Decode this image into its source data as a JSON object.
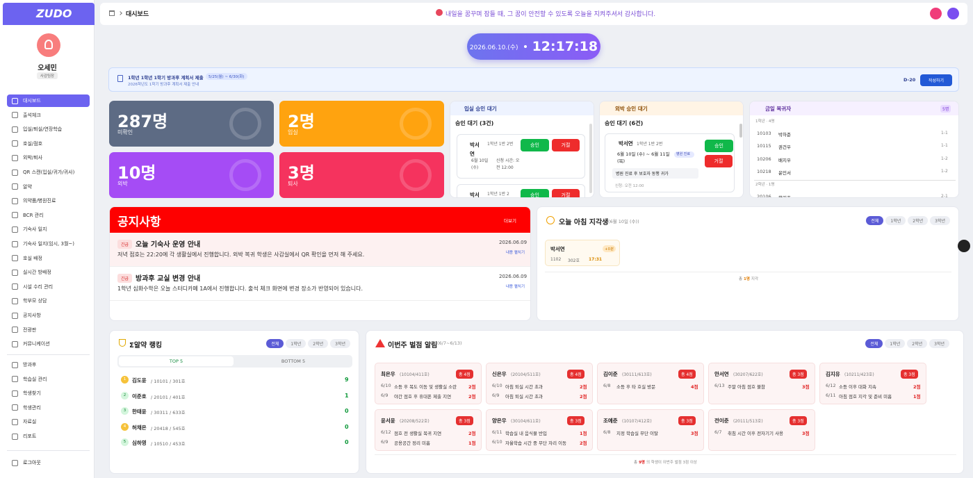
{
  "sidebar": {
    "logo": "ZUDO",
    "user": {
      "name": "오세민",
      "role": "사감팀장"
    },
    "menu": [
      "대시보드",
      "출석체크",
      "입실/퇴실/연장학습",
      "호실/점호",
      "외박/퇴사",
      "QR 스캔(입실/귀가/귀사)",
      "알약",
      "의약품/병원진료",
      "BCR 관리",
      "기숙사 일지",
      "기숙사 일지(임시, 3월~)",
      "호실 배정",
      "실시간 방배정",
      "시설 수리 관리",
      "학부모 상담",
      "공지사항",
      "전광판",
      "커뮤니케이션"
    ],
    "menu2": [
      "방과후",
      "학습실 관리",
      "학생찾기",
      "학생관리",
      "자료실",
      "리포트"
    ],
    "logout": "로그아웃"
  },
  "header": {
    "breadcrumb": "대시보드",
    "message": "내일을 꿈꾸며 잠들 때, 그 꿈이 안전할 수 있도록 오늘을 지켜주셔서 감사합니다."
  },
  "clock": {
    "date": "2026.06.10.(수)",
    "time": "12:17:18"
  },
  "banner": {
    "title": "1학년 1학년 1학기 방과후 계획서 제출",
    "period": "5/25(월) ~ 6/30(화)",
    "sub": "2026학년도 1학기 방과후 계획서 제출 안내",
    "dday": "D-20",
    "button": "작성하기"
  },
  "stats": [
    {
      "value": "287명",
      "label": "미확인"
    },
    {
      "value": "2명",
      "label": "입실"
    },
    {
      "value": "10명",
      "label": "외박"
    },
    {
      "value": "3명",
      "label": "퇴사"
    }
  ],
  "actions": {
    "approve": "승인",
    "reject": "거절"
  },
  "checkin": {
    "title": "입실 승인 대기",
    "count": "승인 대기 (3건)",
    "items": [
      {
        "name": "박서연",
        "grade": "1학년 1반 2번",
        "date": "6월 10일 (수)",
        "time": "신청 시간: 오전 12:00"
      },
      {
        "name": "박서",
        "grade": "1학년 1반 2"
      }
    ]
  },
  "overnight": {
    "title": "외박 승인 대기",
    "count": "승인 대기 (6건)",
    "item": {
      "name": "박서연",
      "grade": "1학년 1반 2번",
      "dates": "6월 10일 (수) ~ 6월 11일 (목)",
      "tag": "병원 진료",
      "reason": "병원 진료 후 보호자 동행 귀가",
      "time": "신청: 오전 12:00"
    }
  },
  "returnees": {
    "title": "금일 복귀자",
    "count": "5명",
    "groups": [
      {
        "label": "1학년 · 4명",
        "rows": [
          [
            "10103",
            "박하준",
            "1-1"
          ],
          [
            "10115",
            "권건우",
            "1-1"
          ],
          [
            "10206",
            "배지우",
            "1-2"
          ],
          [
            "10218",
            "윤민서",
            "1-2"
          ]
        ]
      },
      {
        "label": "2학년 · 1명",
        "rows": [
          [
            "20106",
            "황지호",
            "2-1"
          ]
        ]
      }
    ]
  },
  "notices": {
    "title": "공지사항",
    "more": "더보기",
    "items": [
      {
        "tag": "긴급",
        "title": "오늘 기숙사 운영 안내",
        "body": "저녁 점호는 22:20에 각 생활실에서 진행합니다. 외박 복귀 학생은 사감실에서 QR 확인을 먼저 해 주세요.",
        "date": "2026.06.09",
        "link": "내용 펼치기"
      },
      {
        "tag": "긴급",
        "title": "방과후 교실 변경 안내",
        "body": "1학년 심화수학은 오늘 스터디카페 1A에서 진행합니다. 출석 체크 화면에 변경 장소가 반영되어 있습니다.",
        "date": "2026.06.09",
        "link": "내용 펼치기"
      }
    ]
  },
  "late": {
    "title": "오늘 아침 지각생",
    "date": "(6월 10일 (수))",
    "tabs": [
      "전체",
      "1학년",
      "2학년",
      "3학년"
    ],
    "students": [
      {
        "name": "박서연",
        "badge": "+0분",
        "id": "1102",
        "room": "302호",
        "time": "17:31"
      }
    ],
    "summary": {
      "pre": "총",
      "count": "1명",
      "post": "지각"
    }
  },
  "ranking": {
    "title": "Σ알약 랭킹",
    "tabs": [
      "전체",
      "1학년",
      "2학년",
      "3학년"
    ],
    "top": "TOP 5",
    "bottom": "BOTTOM 5",
    "rows": [
      {
        "rank": 1,
        "name": "김도윤",
        "info": "/ 10101 / 301호",
        "score": 9
      },
      {
        "rank": 2,
        "name": "이준호",
        "info": "/ 20101 / 401호",
        "score": 1
      },
      {
        "rank": 3,
        "name": "한태윤",
        "info": "/ 30311 / 633호",
        "score": 0
      },
      {
        "rank": 4,
        "name": "허채은",
        "info": "/ 20418 / 545호",
        "score": 0
      },
      {
        "rank": 5,
        "name": "심하영",
        "info": "/ 10510 / 453호",
        "score": 0
      }
    ]
  },
  "penalty": {
    "title": "이번주 벌점 알림",
    "range": "(6/7~6/13)",
    "tabs": [
      "전체",
      "1학년",
      "2학년",
      "3학년"
    ],
    "cards": [
      {
        "name": "최은우",
        "info": "(10104/411호)",
        "total": "총 4점",
        "items": [
          [
            "6/10",
            "소등 후 복도 이동 및 생활실 소란",
            "2점"
          ],
          [
            "6/9",
            "야간 점호 후 휴대폰 제출 지연",
            "2점"
          ]
        ]
      },
      {
        "name": "신은우",
        "info": "(20104/511호)",
        "total": "총 4점",
        "items": [
          [
            "6/10",
            "아침 퇴실 시간 초과",
            "2점"
          ],
          [
            "6/9",
            "아침 퇴실 시간 초과",
            "2점"
          ]
        ]
      },
      {
        "name": "김이준",
        "info": "(30111/613호)",
        "total": "총 4점",
        "items": [
          [
            "6/8",
            "소등 후 타 호실 방문",
            "4점"
          ]
        ]
      },
      {
        "name": "안서연",
        "info": "(30207/622호)",
        "total": "총 3점",
        "items": [
          [
            "6/13",
            "주말 아침 점호 불참",
            "3점"
          ]
        ]
      },
      {
        "name": "김지유",
        "info": "(10211/423호)",
        "total": "총 3점",
        "items": [
          [
            "6/12",
            "소등 이후 대화 지속",
            "2점"
          ],
          [
            "6/11",
            "아침 점호 지각 및 준비 미흡",
            "1점"
          ]
        ]
      },
      {
        "name": "윤서윤",
        "info": "(20208/522호)",
        "total": "총 3점",
        "items": [
          [
            "6/12",
            "점호 전 생활실 복귀 지연",
            "2점"
          ],
          [
            "6/9",
            "공용공간 정리 미흡",
            "1점"
          ]
        ]
      },
      {
        "name": "양은우",
        "info": "(30104/611호)",
        "total": "총 3점",
        "items": [
          [
            "6/11",
            "학습실 내 음식물 반입",
            "1점"
          ],
          [
            "6/10",
            "자율학습 시간 중 무단 자리 이동",
            "2점"
          ]
        ]
      },
      {
        "name": "조예준",
        "info": "(10107/412호)",
        "total": "총 3점",
        "items": [
          [
            "6/8",
            "지정 학습실 무단 이탈",
            "3점"
          ]
        ]
      },
      {
        "name": "전이준",
        "info": "(20111/513호)",
        "total": "총 3점",
        "items": [
          [
            "6/7",
            "취침 시간 이후 전자기기 사용",
            "3점"
          ]
        ]
      }
    ],
    "footer": {
      "pre": "총",
      "count": "9명",
      "post": "의 학생이 이번주 벌점 3점 이상"
    }
  }
}
